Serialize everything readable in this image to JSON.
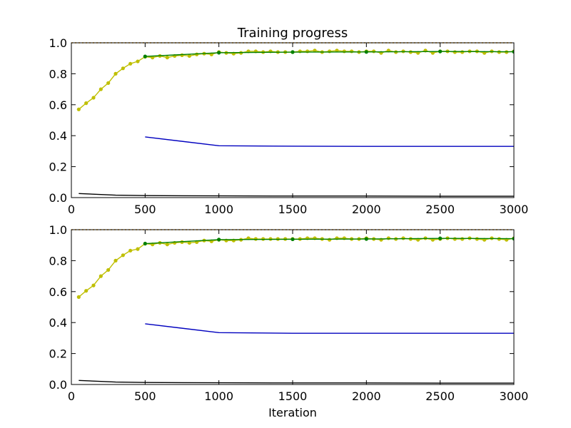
{
  "figure": {
    "title": "Training progress",
    "xlabel": "Iteration"
  },
  "chart_data": [
    {
      "type": "line",
      "title": "Training progress",
      "xlabel": "",
      "ylabel": "",
      "xlim": [
        0,
        3000
      ],
      "ylim": [
        0,
        1.0
      ],
      "xticks": [
        0,
        500,
        1000,
        1500,
        2000,
        2500,
        3000
      ],
      "yticks": [
        0.0,
        0.2,
        0.4,
        0.6,
        0.8,
        1.0
      ],
      "xtick_labels": [
        "0",
        "500",
        "1000",
        "1500",
        "2000",
        "2500",
        "3000"
      ],
      "ytick_labels": [
        "0.0",
        "0.2",
        "0.4",
        "0.6",
        "0.8",
        "1.0"
      ],
      "grid": false,
      "series": [
        {
          "color": "#bfbf00",
          "marker": "dot",
          "x": [
            50,
            100,
            150,
            200,
            250,
            300,
            350,
            400,
            450,
            500,
            550,
            600,
            650,
            700,
            750,
            800,
            850,
            900,
            950,
            1000,
            1050,
            1100,
            1150,
            1200,
            1250,
            1300,
            1350,
            1400,
            1450,
            1500,
            1550,
            1600,
            1650,
            1700,
            1750,
            1800,
            1850,
            1900,
            1950,
            2000,
            2050,
            2100,
            2150,
            2200,
            2250,
            2300,
            2350,
            2400,
            2450,
            2500,
            2550,
            2600,
            2650,
            2700,
            2750,
            2800,
            2850,
            2900,
            2950,
            3000
          ],
          "y": [
            0.57,
            0.61,
            0.645,
            0.7,
            0.74,
            0.8,
            0.835,
            0.865,
            0.88,
            0.91,
            0.905,
            0.915,
            0.905,
            0.915,
            0.92,
            0.915,
            0.925,
            0.93,
            0.925,
            0.94,
            0.935,
            0.93,
            0.935,
            0.945,
            0.945,
            0.94,
            0.945,
            0.94,
            0.94,
            0.94,
            0.945,
            0.945,
            0.95,
            0.94,
            0.945,
            0.95,
            0.945,
            0.945,
            0.94,
            0.945,
            0.945,
            0.935,
            0.95,
            0.94,
            0.945,
            0.94,
            0.935,
            0.95,
            0.935,
            0.945,
            0.945,
            0.94,
            0.94,
            0.945,
            0.945,
            0.935,
            0.945,
            0.94,
            0.94,
            0.945
          ]
        },
        {
          "color": "#008000",
          "marker": "dot",
          "x": [
            500,
            1000,
            1500,
            2000,
            2500,
            3000
          ],
          "y": [
            0.912,
            0.936,
            0.94,
            0.941,
            0.944,
            0.942
          ]
        },
        {
          "color": "#0000bf",
          "marker": "none",
          "x": [
            500,
            1000,
            1500,
            2000,
            2500,
            3000
          ],
          "y": [
            0.392,
            0.335,
            0.332,
            0.331,
            0.331,
            0.331
          ]
        },
        {
          "color": "#000000",
          "marker": "none",
          "x": [
            50,
            300,
            500,
            1000,
            1500,
            2000,
            2500,
            3000
          ],
          "y": [
            0.026,
            0.016,
            0.013,
            0.011,
            0.01,
            0.01,
            0.009,
            0.009
          ]
        },
        {
          "color": "#e69500",
          "marker": "none",
          "style": "dotted",
          "x": [
            0,
            3000
          ],
          "y": [
            1.0,
            1.0
          ]
        }
      ]
    },
    {
      "type": "line",
      "title": "",
      "xlabel": "Iteration",
      "ylabel": "",
      "xlim": [
        0,
        3000
      ],
      "ylim": [
        0,
        1.0
      ],
      "xticks": [
        0,
        500,
        1000,
        1500,
        2000,
        2500,
        3000
      ],
      "yticks": [
        0.0,
        0.2,
        0.4,
        0.6,
        0.8,
        1.0
      ],
      "xtick_labels": [
        "0",
        "500",
        "1000",
        "1500",
        "2000",
        "2500",
        "3000"
      ],
      "ytick_labels": [
        "0.0",
        "0.2",
        "0.4",
        "0.6",
        "0.8",
        "1.0"
      ],
      "grid": false,
      "series": [
        {
          "color": "#bfbf00",
          "marker": "dot",
          "x": [
            50,
            100,
            150,
            200,
            250,
            300,
            350,
            400,
            450,
            500,
            550,
            600,
            650,
            700,
            750,
            800,
            850,
            900,
            950,
            1000,
            1050,
            1100,
            1150,
            1200,
            1250,
            1300,
            1350,
            1400,
            1450,
            1500,
            1550,
            1600,
            1650,
            1700,
            1750,
            1800,
            1850,
            1900,
            1950,
            2000,
            2050,
            2100,
            2150,
            2200,
            2250,
            2300,
            2350,
            2400,
            2450,
            2500,
            2550,
            2600,
            2650,
            2700,
            2750,
            2800,
            2850,
            2900,
            2950,
            3000
          ],
          "y": [
            0.565,
            0.605,
            0.64,
            0.7,
            0.74,
            0.8,
            0.835,
            0.865,
            0.875,
            0.91,
            0.905,
            0.915,
            0.905,
            0.915,
            0.92,
            0.915,
            0.92,
            0.93,
            0.925,
            0.935,
            0.93,
            0.93,
            0.935,
            0.945,
            0.94,
            0.94,
            0.94,
            0.94,
            0.94,
            0.94,
            0.94,
            0.945,
            0.945,
            0.94,
            0.935,
            0.945,
            0.945,
            0.94,
            0.94,
            0.945,
            0.94,
            0.935,
            0.945,
            0.94,
            0.945,
            0.94,
            0.935,
            0.945,
            0.935,
            0.94,
            0.945,
            0.94,
            0.94,
            0.945,
            0.94,
            0.935,
            0.945,
            0.94,
            0.935,
            0.945
          ]
        },
        {
          "color": "#008000",
          "marker": "dot",
          "x": [
            500,
            1000,
            1500,
            2000,
            2500,
            3000
          ],
          "y": [
            0.91,
            0.936,
            0.938,
            0.94,
            0.944,
            0.942
          ]
        },
        {
          "color": "#0000bf",
          "marker": "none",
          "x": [
            500,
            1000,
            1500,
            2000,
            2500,
            3000
          ],
          "y": [
            0.392,
            0.335,
            0.331,
            0.331,
            0.331,
            0.331
          ]
        },
        {
          "color": "#000000",
          "marker": "none",
          "x": [
            50,
            300,
            500,
            1000,
            1500,
            2000,
            2500,
            3000
          ],
          "y": [
            0.026,
            0.016,
            0.013,
            0.011,
            0.01,
            0.01,
            0.009,
            0.009
          ]
        },
        {
          "color": "#e69500",
          "marker": "none",
          "style": "dotted",
          "x": [
            0,
            3000
          ],
          "y": [
            1.0,
            1.0
          ]
        }
      ]
    }
  ]
}
